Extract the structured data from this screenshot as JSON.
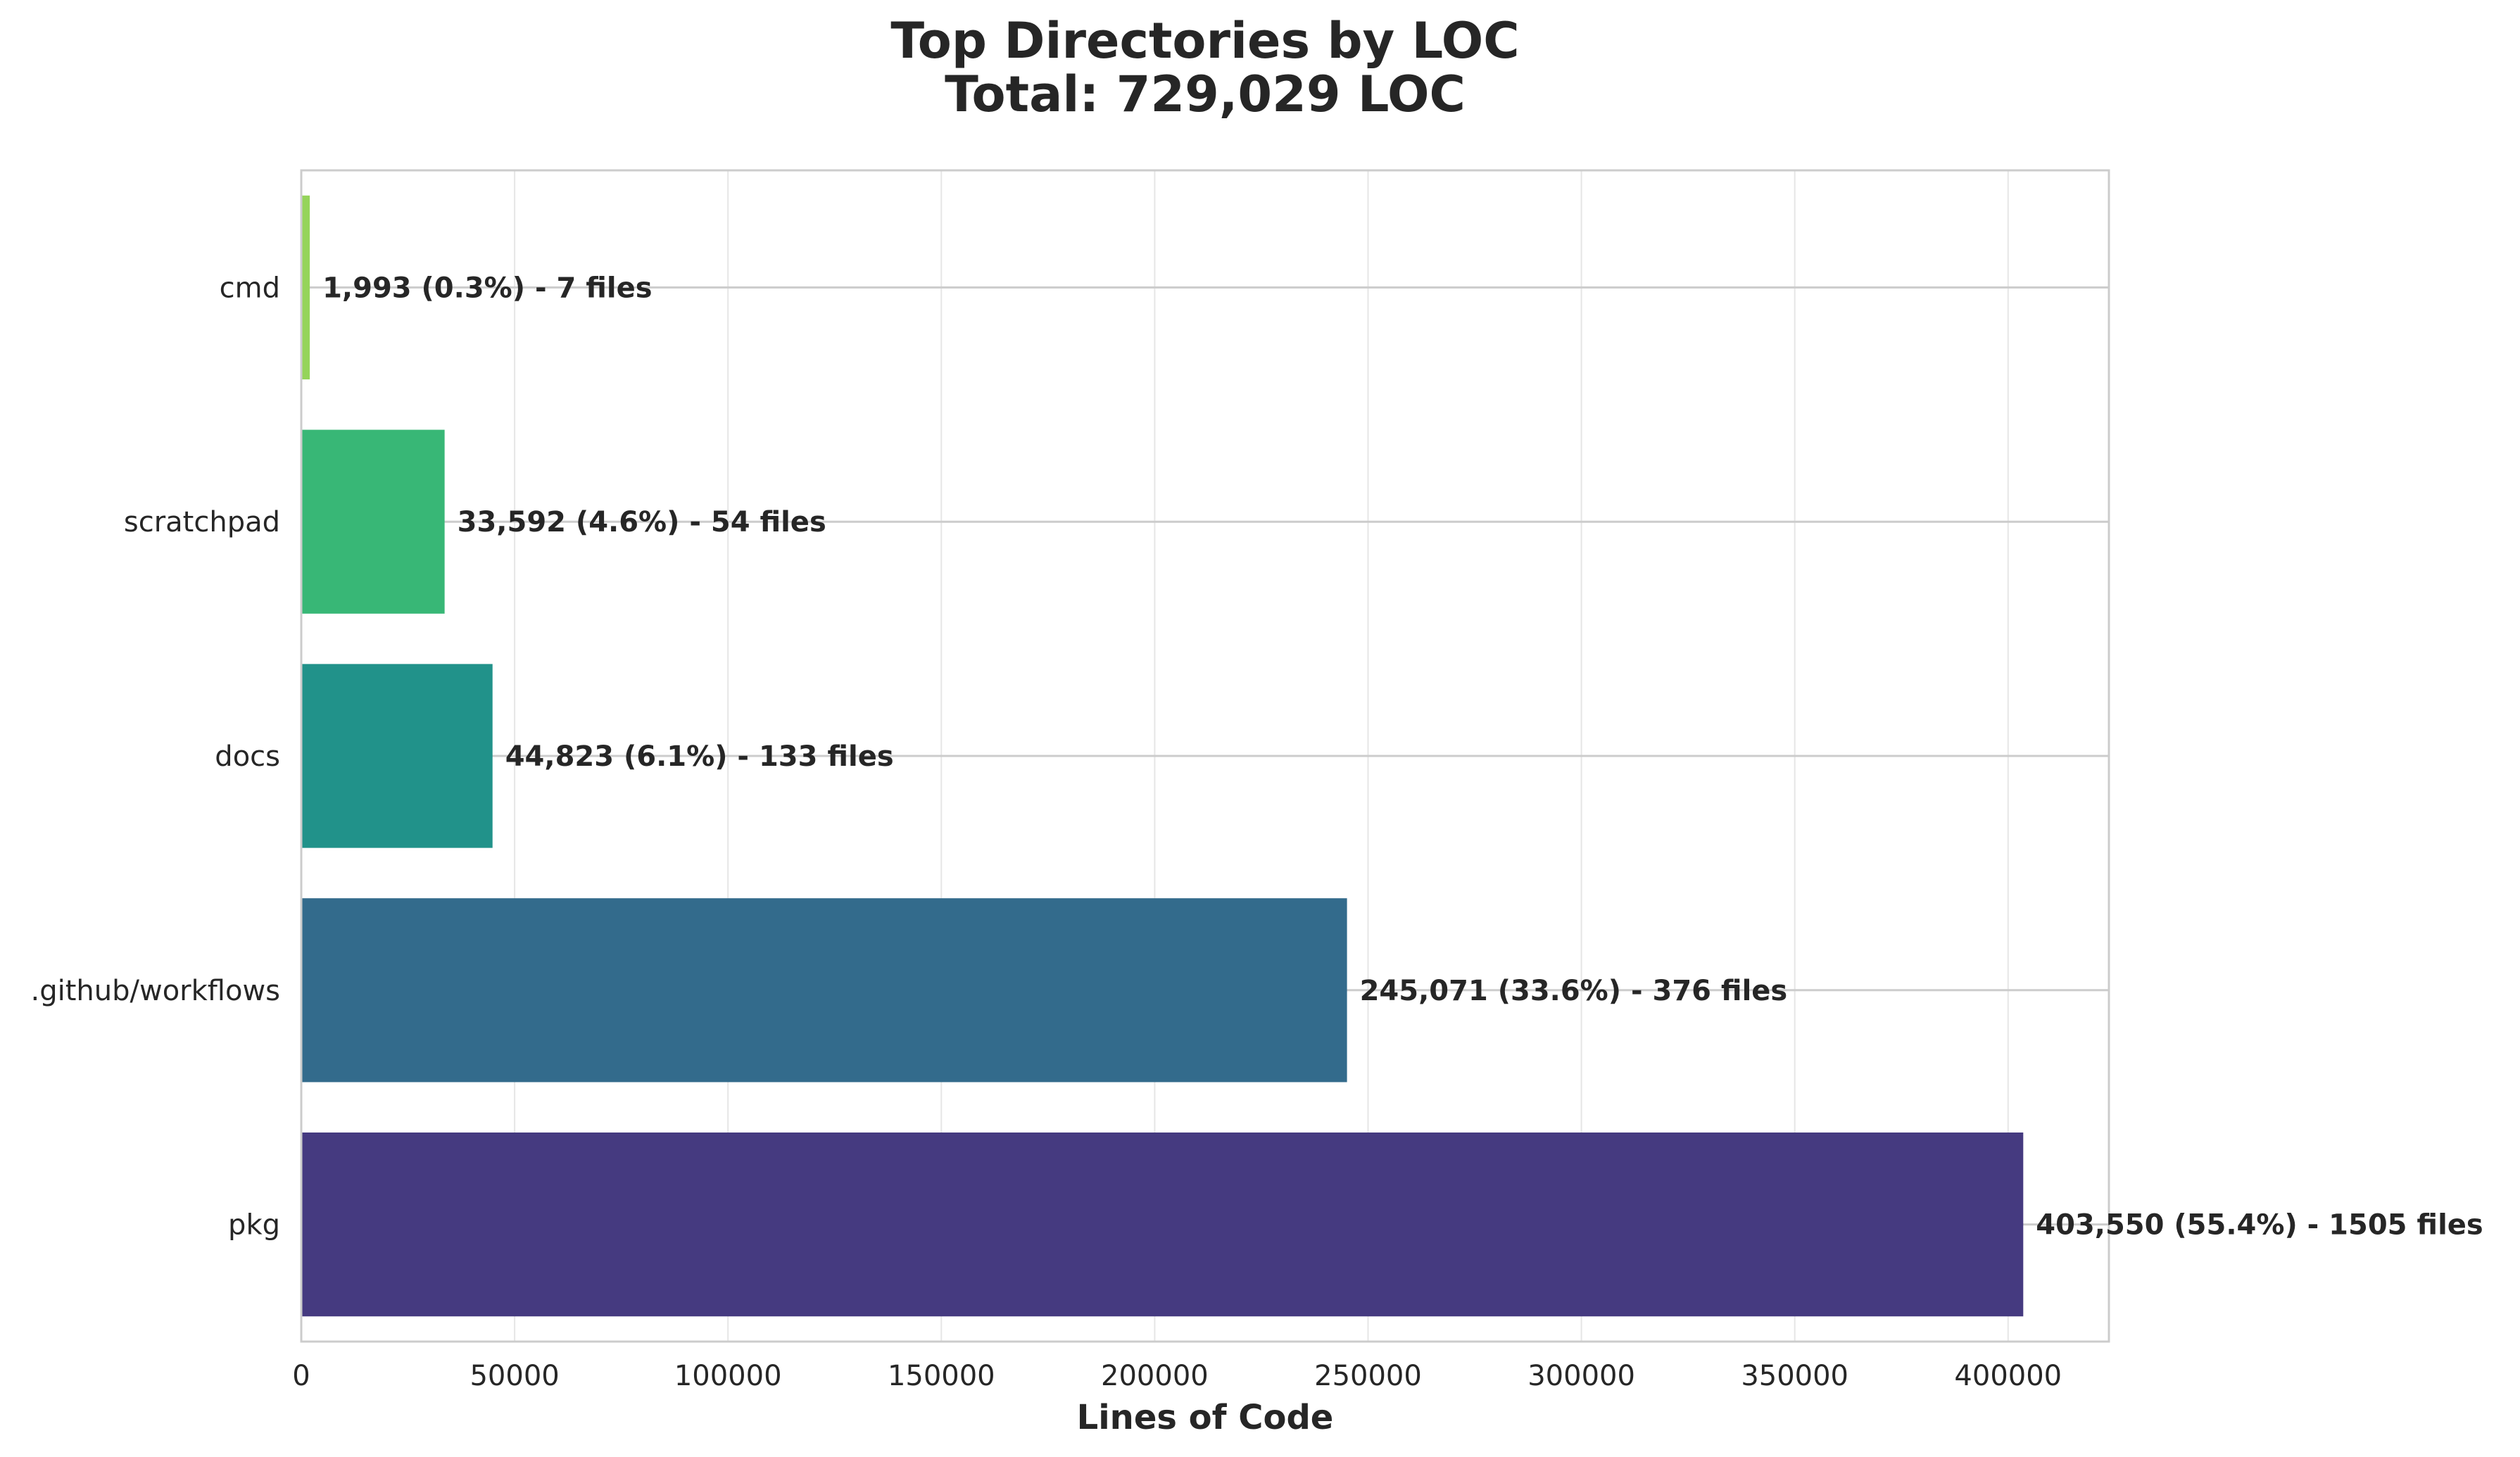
{
  "chart_data": {
    "type": "bar",
    "orientation": "horizontal",
    "title": "Top Directories by LOC",
    "subtitle": "Total: 729,029 LOC",
    "xlabel": "Lines of Code",
    "ylabel": "",
    "xlim": [
      0,
      423627
    ],
    "xticks": [
      "0",
      "50000",
      "100000",
      "150000",
      "200000",
      "250000",
      "300000",
      "350000",
      "400000"
    ],
    "grid": true,
    "categories": [
      "cmd",
      "scratchpad",
      "docs",
      ".github/workflows",
      "pkg"
    ],
    "values": [
      1993,
      33592,
      44823,
      245071,
      403550
    ],
    "labels": [
      "1,993 (0.3%) - 7 files",
      "33,592 (4.6%) - 54 files",
      "44,823 (6.1%) - 133 files",
      "245,071 (33.6%) - 376 files",
      "403,550 (55.4%) - 1505 files"
    ],
    "colors": [
      "#95d45a",
      "#38b776",
      "#21928a",
      "#336b8c",
      "#453a80"
    ]
  }
}
